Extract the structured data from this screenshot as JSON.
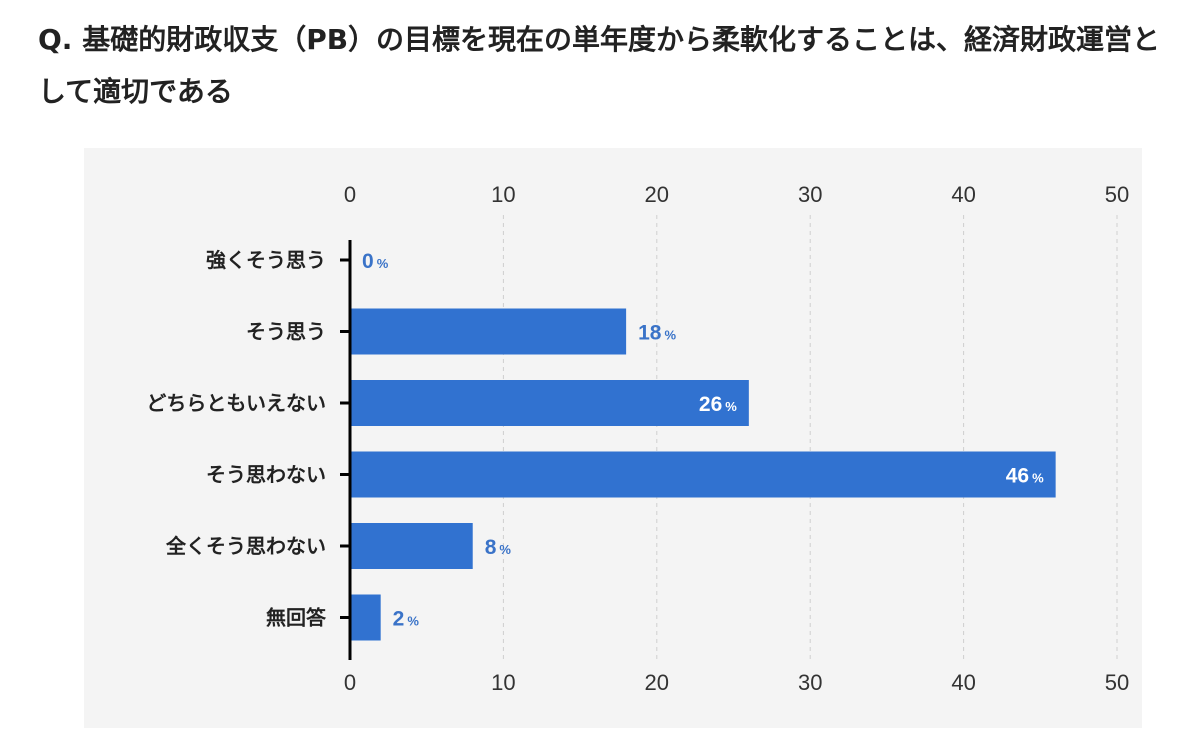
{
  "question": "Q. 基礎的財政収支（PB）の目標を現在の単年度から柔軟化することは、経済財政運営として適切である",
  "colors": {
    "bar": "#3172d0",
    "label_outside": "#3a73c8",
    "label_inside": "#ffffff",
    "panel": "#f4f4f4"
  },
  "chart_data": {
    "type": "bar",
    "orientation": "horizontal",
    "categories": [
      "強くそう思う",
      "そう思う",
      "どちらともいえない",
      "そう思わない",
      "全くそう思わない",
      "無回答"
    ],
    "values": [
      0,
      18,
      26,
      46,
      8,
      2
    ],
    "value_suffix": "%",
    "xlim": [
      0,
      50
    ],
    "xticks": [
      0,
      10,
      20,
      30,
      40,
      50
    ],
    "xticks_position": "top-and-bottom",
    "grid": "vertical-dashed"
  }
}
